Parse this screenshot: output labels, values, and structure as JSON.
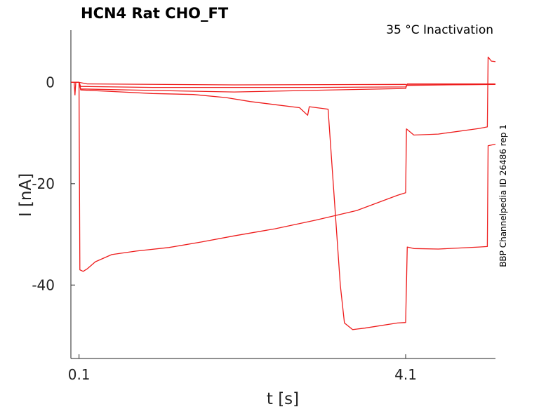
{
  "chart_data": {
    "type": "line",
    "title": "HCN4  Rat  CHO_FT",
    "subtitle": "35 °C  Inactivation",
    "side_label": "BBP Channelpedia ID 26486 rep 1",
    "xlabel": "t [s]",
    "ylabel": "I [nA]",
    "xlim": [
      0.0,
      5.2
    ],
    "ylim": [
      -54.5,
      10.3
    ],
    "x_ticks": [
      0.1,
      4.1
    ],
    "x_tick_labels": [
      "0.1",
      "4.1"
    ],
    "y_ticks": [
      0,
      -20,
      -40
    ],
    "y_tick_labels": [
      "0",
      "-20",
      "-40"
    ],
    "grid": false,
    "line_color": "#ee1c1c",
    "series": [
      {
        "points": [
          [
            0.0,
            0
          ],
          [
            0.04,
            0
          ],
          [
            0.05,
            -2.5
          ],
          [
            0.06,
            0
          ],
          [
            0.1,
            0
          ],
          [
            0.2,
            -0.3
          ],
          [
            2.0,
            -0.5
          ],
          [
            4.1,
            -0.4
          ],
          [
            4.12,
            -0.6
          ],
          [
            5.1,
            -0.4
          ],
          [
            5.2,
            -0.4
          ]
        ]
      },
      {
        "points": [
          [
            0.0,
            0
          ],
          [
            0.1,
            0
          ],
          [
            0.12,
            -0.8
          ],
          [
            1.0,
            -1.0
          ],
          [
            2.0,
            -1.0
          ],
          [
            3.0,
            -1.0
          ],
          [
            4.1,
            -0.9
          ],
          [
            4.12,
            -0.5
          ],
          [
            5.2,
            -0.4
          ]
        ]
      },
      {
        "points": [
          [
            0.0,
            0
          ],
          [
            0.1,
            0
          ],
          [
            0.12,
            -1.3
          ],
          [
            1.0,
            -1.6
          ],
          [
            2.0,
            -1.9
          ],
          [
            3.5,
            -1.4
          ],
          [
            4.1,
            -1.2
          ],
          [
            4.12,
            -0.3
          ],
          [
            5.2,
            -0.3
          ]
        ]
      },
      {
        "points": [
          [
            0.0,
            0
          ],
          [
            0.1,
            0
          ],
          [
            0.12,
            -1.5
          ],
          [
            0.5,
            -1.8
          ],
          [
            1.0,
            -2.2
          ],
          [
            1.5,
            -2.4
          ],
          [
            1.9,
            -3.0
          ],
          [
            2.2,
            -3.8
          ],
          [
            2.5,
            -4.4
          ],
          [
            2.8,
            -5.0
          ],
          [
            2.9,
            -6.5
          ],
          [
            2.92,
            -4.8
          ],
          [
            3.1,
            -5.2
          ],
          [
            3.15,
            -5.3
          ],
          [
            3.3,
            -40.0
          ],
          [
            3.35,
            -47.5
          ],
          [
            3.45,
            -48.8
          ],
          [
            3.6,
            -48.5
          ],
          [
            4.0,
            -47.5
          ],
          [
            4.1,
            -47.4
          ],
          [
            4.12,
            -32.5
          ],
          [
            4.2,
            -32.8
          ],
          [
            4.5,
            -32.9
          ],
          [
            5.0,
            -32.5
          ],
          [
            5.1,
            -32.4
          ],
          [
            5.11,
            -12.5
          ],
          [
            5.2,
            -12.2
          ]
        ]
      },
      {
        "points": [
          [
            0.0,
            0
          ],
          [
            0.1,
            0
          ],
          [
            0.11,
            -37.0
          ],
          [
            0.15,
            -37.3
          ],
          [
            0.2,
            -36.8
          ],
          [
            0.3,
            -35.4
          ],
          [
            0.5,
            -34.0
          ],
          [
            0.8,
            -33.3
          ],
          [
            1.2,
            -32.6
          ],
          [
            1.6,
            -31.5
          ],
          [
            2.0,
            -30.3
          ],
          [
            2.5,
            -28.9
          ],
          [
            3.0,
            -27.2
          ],
          [
            3.5,
            -25.3
          ],
          [
            4.0,
            -22.3
          ],
          [
            4.1,
            -21.8
          ],
          [
            4.11,
            -9.2
          ],
          [
            4.2,
            -10.4
          ],
          [
            4.5,
            -10.2
          ],
          [
            5.0,
            -9.1
          ],
          [
            5.1,
            -8.8
          ],
          [
            5.11,
            5.0
          ],
          [
            5.15,
            4.2
          ],
          [
            5.2,
            4.1
          ]
        ]
      }
    ]
  }
}
